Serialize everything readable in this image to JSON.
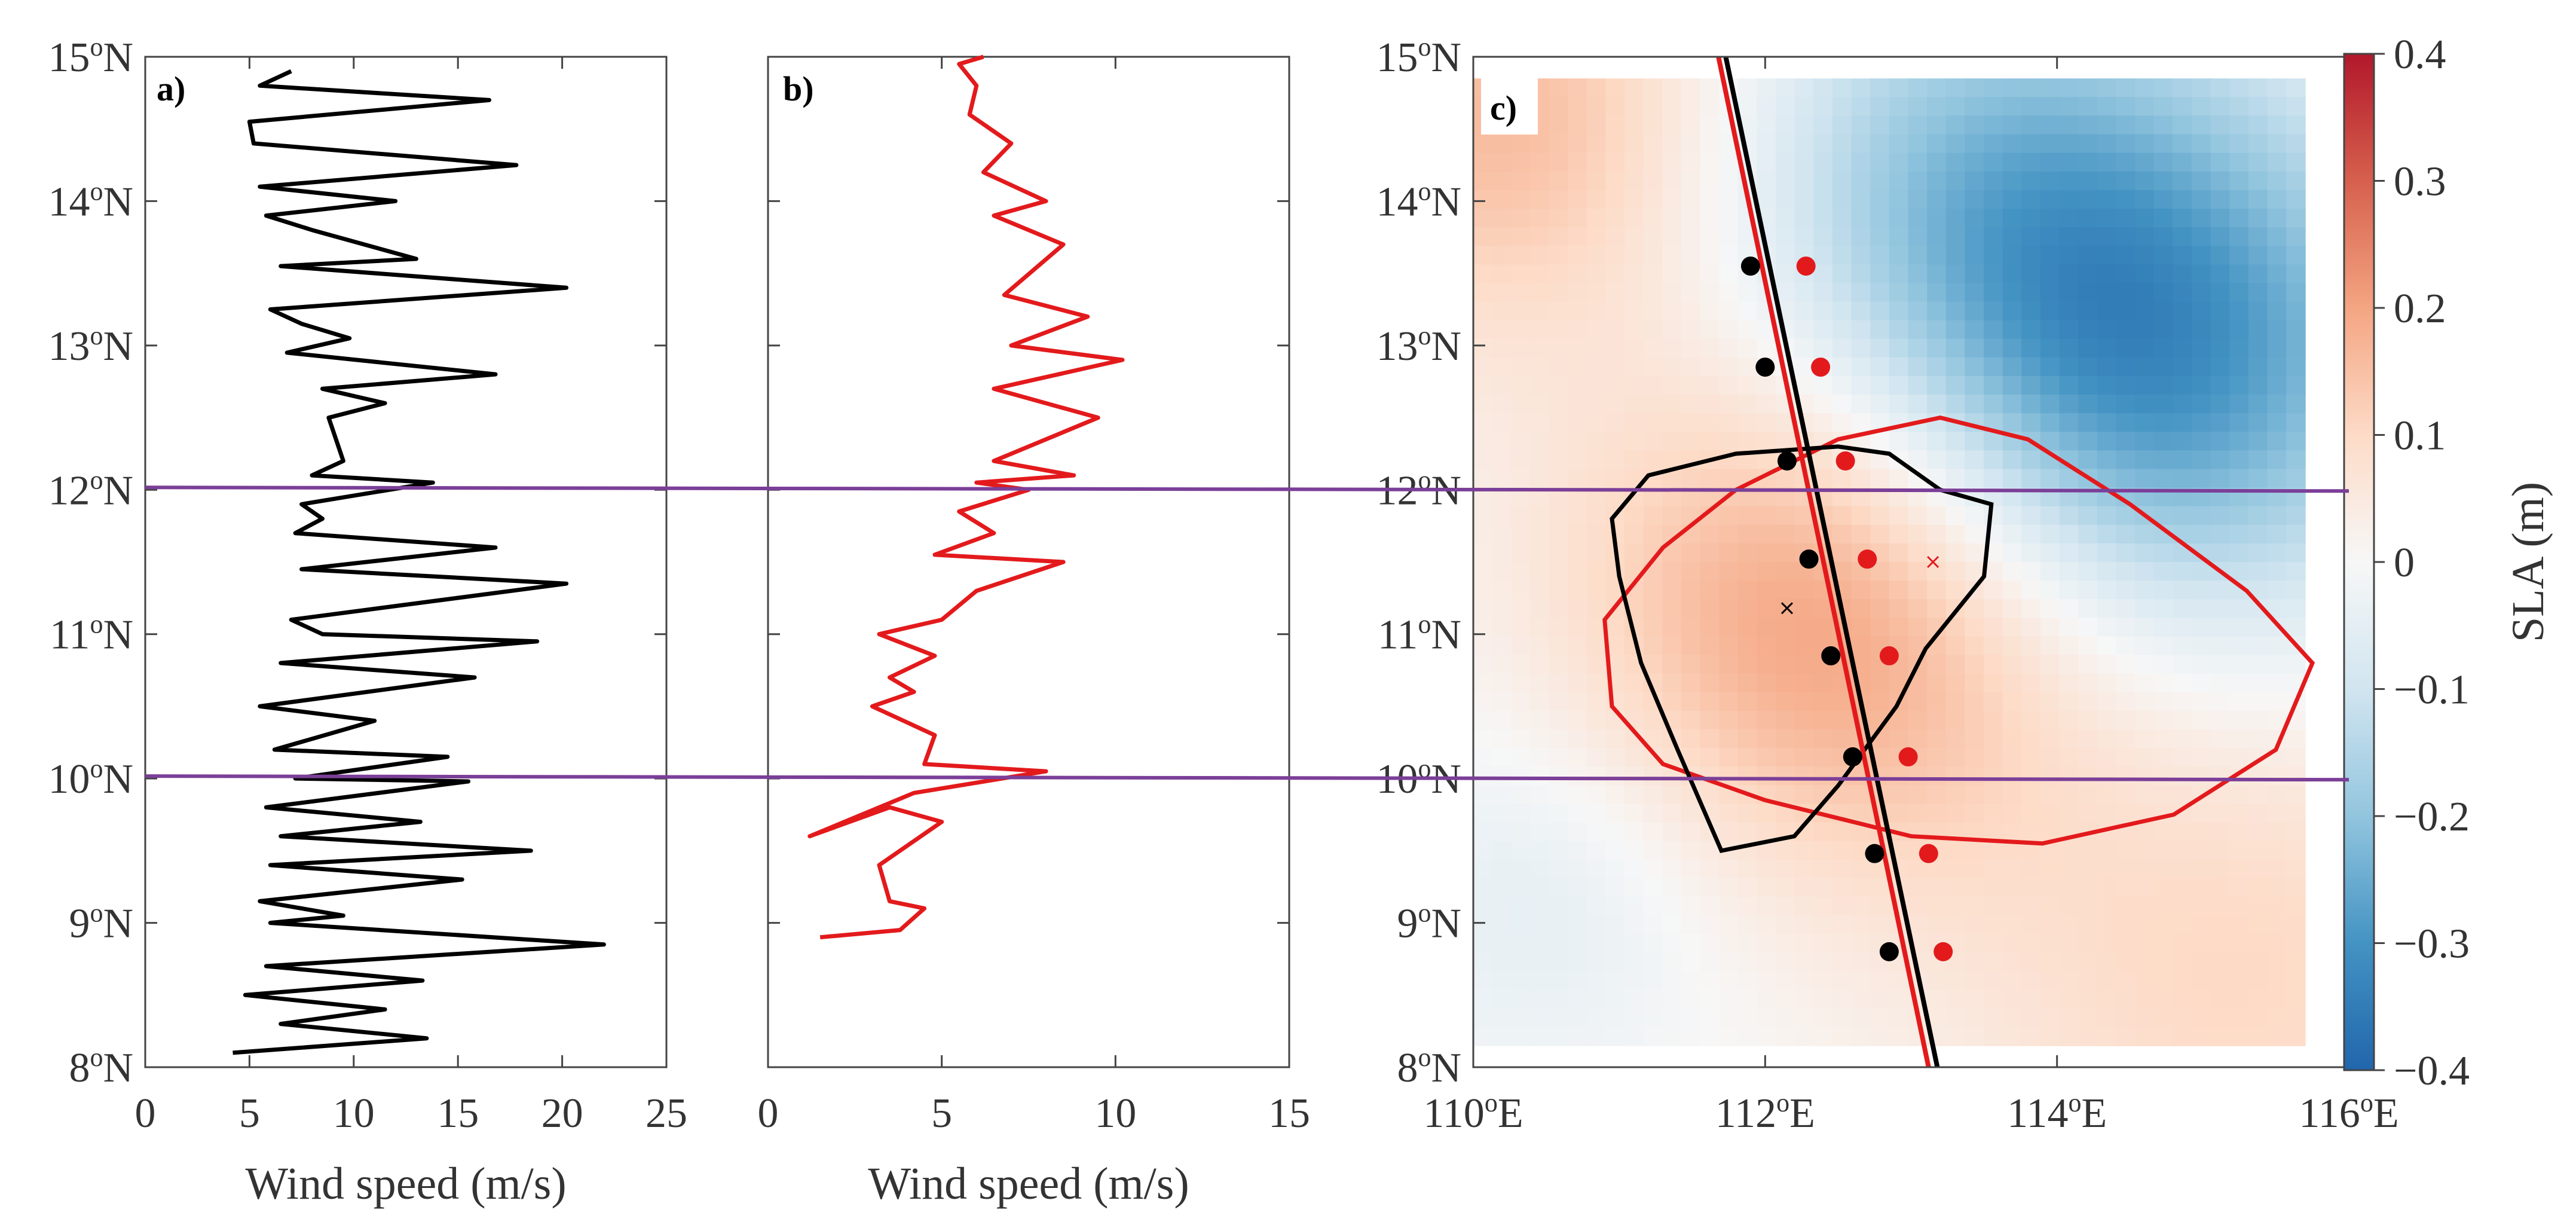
{
  "chart_data": [
    {
      "panel": "a",
      "type": "line",
      "panel_label": "a)",
      "xlabel": "Wind speed (m/s)",
      "xlim": [
        0,
        25
      ],
      "xticks": [
        "0",
        "5",
        "10",
        "15",
        "20",
        "25"
      ],
      "ylim": [
        8,
        15
      ],
      "yticks": [
        {
          "deg": "8",
          "hemi": "N"
        },
        {
          "deg": "9",
          "hemi": "N"
        },
        {
          "deg": "10",
          "hemi": "N"
        },
        {
          "deg": "11",
          "hemi": "N"
        },
        {
          "deg": "12",
          "hemi": "N"
        },
        {
          "deg": "13",
          "hemi": "N"
        },
        {
          "deg": "14",
          "hemi": "N"
        },
        {
          "deg": "15",
          "hemi": "N"
        }
      ],
      "series": [
        {
          "name": "wind speed",
          "color": "#000000",
          "points": [
            [
              4.2,
              8.1
            ],
            [
              13.5,
              8.2
            ],
            [
              6.5,
              8.3
            ],
            [
              11.5,
              8.4
            ],
            [
              4.8,
              8.5
            ],
            [
              13.3,
              8.6
            ],
            [
              5.8,
              8.7
            ],
            [
              22.0,
              8.85
            ],
            [
              6.0,
              9.0
            ],
            [
              9.5,
              9.05
            ],
            [
              5.5,
              9.15
            ],
            [
              15.2,
              9.3
            ],
            [
              6.0,
              9.4
            ],
            [
              18.5,
              9.5
            ],
            [
              6.5,
              9.6
            ],
            [
              13.2,
              9.7
            ],
            [
              5.8,
              9.8
            ],
            [
              15.5,
              9.98
            ],
            [
              7.2,
              10.0
            ],
            [
              14.5,
              10.15
            ],
            [
              6.2,
              10.2
            ],
            [
              11.0,
              10.4
            ],
            [
              5.5,
              10.5
            ],
            [
              15.8,
              10.7
            ],
            [
              6.5,
              10.8
            ],
            [
              18.8,
              10.95
            ],
            [
              8.5,
              11.0
            ],
            [
              7.0,
              11.1
            ],
            [
              20.2,
              11.35
            ],
            [
              7.5,
              11.45
            ],
            [
              16.8,
              11.6
            ],
            [
              7.2,
              11.7
            ],
            [
              8.5,
              11.8
            ],
            [
              7.5,
              11.9
            ],
            [
              13.8,
              12.05
            ],
            [
              8.0,
              12.1
            ],
            [
              9.5,
              12.2
            ],
            [
              8.8,
              12.5
            ],
            [
              11.5,
              12.6
            ],
            [
              8.5,
              12.7
            ],
            [
              16.8,
              12.8
            ],
            [
              6.8,
              12.95
            ],
            [
              9.8,
              13.05
            ],
            [
              7.5,
              13.15
            ],
            [
              6.0,
              13.25
            ],
            [
              20.2,
              13.4
            ],
            [
              6.5,
              13.55
            ],
            [
              13.0,
              13.6
            ],
            [
              8.0,
              13.8
            ],
            [
              5.8,
              13.9
            ],
            [
              12.0,
              14.0
            ],
            [
              5.5,
              14.1
            ],
            [
              17.8,
              14.25
            ],
            [
              5.2,
              14.4
            ],
            [
              5.0,
              14.55
            ],
            [
              16.5,
              14.7
            ],
            [
              5.5,
              14.8
            ],
            [
              7.0,
              14.9
            ]
          ]
        }
      ],
      "hlines": [
        12,
        10
      ]
    },
    {
      "panel": "b",
      "type": "line",
      "panel_label": "b)",
      "xlabel": "Wind speed (m/s)",
      "xlim": [
        0,
        15
      ],
      "xticks": [
        "0",
        "5",
        "10",
        "15"
      ],
      "ylim": [
        8,
        15
      ],
      "series": [
        {
          "name": "wind speed",
          "color": "#e31a1c",
          "points": [
            [
              1.5,
              8.9
            ],
            [
              3.8,
              8.95
            ],
            [
              4.5,
              9.1
            ],
            [
              3.5,
              9.15
            ],
            [
              3.2,
              9.4
            ],
            [
              5.0,
              9.7
            ],
            [
              3.5,
              9.8
            ],
            [
              1.2,
              9.6
            ],
            [
              4.2,
              9.9
            ],
            [
              8.0,
              10.05
            ],
            [
              4.5,
              10.1
            ],
            [
              4.8,
              10.3
            ],
            [
              3.0,
              10.5
            ],
            [
              4.2,
              10.6
            ],
            [
              3.5,
              10.7
            ],
            [
              4.8,
              10.85
            ],
            [
              3.2,
              11.0
            ],
            [
              5.0,
              11.1
            ],
            [
              6.0,
              11.3
            ],
            [
              8.5,
              11.5
            ],
            [
              4.8,
              11.55
            ],
            [
              6.5,
              11.7
            ],
            [
              5.5,
              11.85
            ],
            [
              7.5,
              12.0
            ],
            [
              6.0,
              12.05
            ],
            [
              8.8,
              12.1
            ],
            [
              6.5,
              12.2
            ],
            [
              9.5,
              12.5
            ],
            [
              6.5,
              12.7
            ],
            [
              10.2,
              12.9
            ],
            [
              7.0,
              13.0
            ],
            [
              9.2,
              13.2
            ],
            [
              6.8,
              13.35
            ],
            [
              8.5,
              13.7
            ],
            [
              6.5,
              13.9
            ],
            [
              8.0,
              14.0
            ],
            [
              6.2,
              14.2
            ],
            [
              7.0,
              14.4
            ],
            [
              5.8,
              14.6
            ],
            [
              6.0,
              14.8
            ],
            [
              5.5,
              14.95
            ],
            [
              6.2,
              15.0
            ]
          ]
        }
      ],
      "hlines": [
        12,
        10
      ]
    },
    {
      "panel": "c",
      "type": "heatmap",
      "panel_label": "c)",
      "xlim": [
        110,
        116
      ],
      "ylim": [
        8,
        15
      ],
      "xticks": [
        {
          "deg": "110",
          "hemi": "E"
        },
        {
          "deg": "112",
          "hemi": "E"
        },
        {
          "deg": "114",
          "hemi": "E"
        },
        {
          "deg": "116",
          "hemi": "E"
        }
      ],
      "yticks": [
        {
          "deg": "8",
          "hemi": "N"
        },
        {
          "deg": "9",
          "hemi": "N"
        },
        {
          "deg": "10",
          "hemi": "N"
        },
        {
          "deg": "11",
          "hemi": "N"
        },
        {
          "deg": "12",
          "hemi": "N"
        },
        {
          "deg": "13",
          "hemi": "N"
        },
        {
          "deg": "14",
          "hemi": "N"
        },
        {
          "deg": "15",
          "hemi": "N"
        }
      ],
      "field_extent": {
        "lon": [
          110.0,
          115.7
        ],
        "lat": [
          8.15,
          14.85
        ]
      },
      "field_blobs": [
        {
          "lon": 114.6,
          "lat": 12.9,
          "value": -0.32,
          "spread": 1.3
        },
        {
          "lon": 113.3,
          "lat": 14.2,
          "value": -0.14,
          "spread": 1.2
        },
        {
          "lon": 112.5,
          "lat": 11.2,
          "value": 0.22,
          "spread": 1.3
        },
        {
          "lon": 110.2,
          "lat": 14.6,
          "value": 0.16,
          "spread": 1.1
        },
        {
          "lon": 115.3,
          "lat": 8.6,
          "value": 0.1,
          "spread": 1.4
        },
        {
          "lon": 110.6,
          "lat": 9.3,
          "value": -0.06,
          "spread": 0.9
        }
      ],
      "colorbar": {
        "label": "SLA (m)",
        "range": [
          -0.4,
          0.4
        ],
        "ticks": [
          "0.4",
          "0.3",
          "0.2",
          "0.1",
          "0",
          "−0.1",
          "−0.2",
          "−0.3",
          "−0.4"
        ]
      },
      "track_lines": [
        {
          "name": "black track",
          "color": "#000000",
          "from": [
            111.73,
            15.0
          ],
          "to": [
            113.18,
            8.0
          ]
        },
        {
          "name": "red track",
          "color": "#e31a1c",
          "from": [
            111.68,
            15.0
          ],
          "to": [
            113.12,
            8.0
          ]
        }
      ],
      "black_points": [
        [
          111.9,
          13.55
        ],
        [
          112.0,
          12.85
        ],
        [
          112.15,
          12.2
        ],
        [
          112.3,
          11.52
        ],
        [
          112.45,
          10.85
        ],
        [
          112.6,
          10.15
        ],
        [
          112.75,
          9.48
        ],
        [
          112.85,
          8.8
        ]
      ],
      "red_points": [
        [
          112.28,
          13.55
        ],
        [
          112.38,
          12.85
        ],
        [
          112.55,
          12.2
        ],
        [
          112.7,
          11.52
        ],
        [
          112.85,
          10.85
        ],
        [
          112.98,
          10.15
        ],
        [
          113.12,
          9.48
        ],
        [
          113.22,
          8.8
        ]
      ],
      "black_contour": [
        [
          111.7,
          9.5
        ],
        [
          111.4,
          10.2
        ],
        [
          111.15,
          10.8
        ],
        [
          111.0,
          11.4
        ],
        [
          110.95,
          11.8
        ],
        [
          111.2,
          12.1
        ],
        [
          111.8,
          12.25
        ],
        [
          112.5,
          12.3
        ],
        [
          112.85,
          12.25
        ],
        [
          113.2,
          12.0
        ],
        [
          113.55,
          11.9
        ],
        [
          113.5,
          11.4
        ],
        [
          113.1,
          10.9
        ],
        [
          112.9,
          10.5
        ],
        [
          112.5,
          9.95
        ],
        [
          112.2,
          9.6
        ],
        [
          111.7,
          9.5
        ]
      ],
      "red_contour": [
        [
          110.9,
          11.1
        ],
        [
          111.3,
          11.6
        ],
        [
          111.8,
          12.0
        ],
        [
          112.5,
          12.35
        ],
        [
          113.2,
          12.5
        ],
        [
          113.8,
          12.35
        ],
        [
          114.5,
          11.9
        ],
        [
          115.3,
          11.3
        ],
        [
          115.75,
          10.8
        ],
        [
          115.5,
          10.2
        ],
        [
          114.8,
          9.75
        ],
        [
          113.9,
          9.55
        ],
        [
          113.0,
          9.6
        ],
        [
          112.0,
          9.85
        ],
        [
          111.3,
          10.1
        ],
        [
          110.95,
          10.5
        ],
        [
          110.9,
          11.1
        ]
      ],
      "black_center": [
        112.15,
        11.18
      ],
      "red_center": [
        113.15,
        11.5
      ],
      "hlines": [
        12,
        10
      ]
    }
  ]
}
